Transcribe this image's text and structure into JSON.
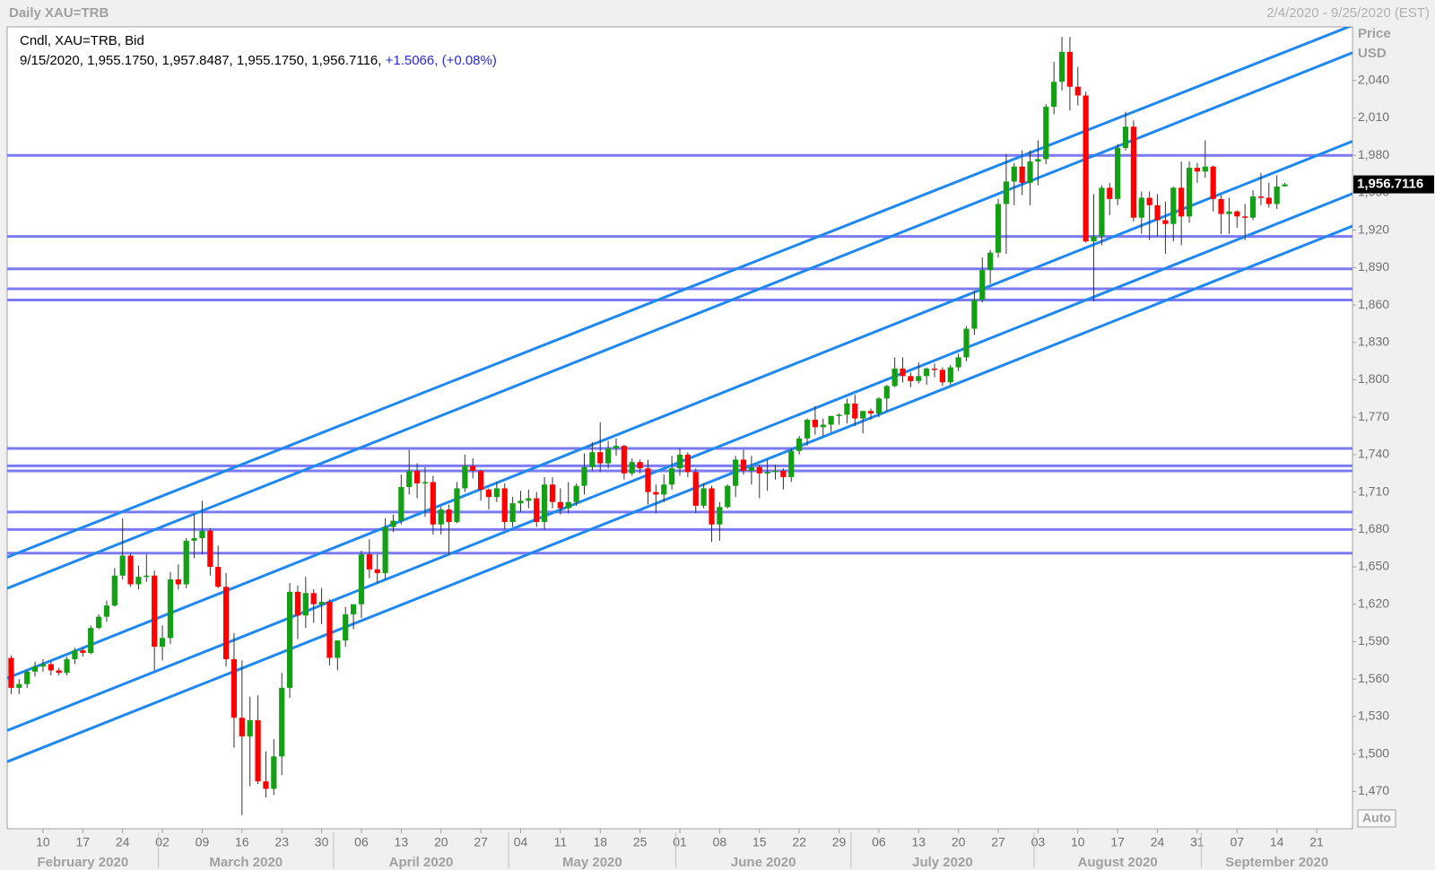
{
  "chart_data": {
    "type": "candlestick",
    "title": "Daily XAU=TRB",
    "date_range": "2/4/2020 - 9/25/2020 (EST)",
    "legend_title": "Cndl, XAU=TRB, Bid",
    "legend_values": "9/15/2020, 1,955.1750, 1,957.8487, 1,955.1750, 1,956.7116,",
    "legend_change": "+1.5066,",
    "legend_change_pct": "(+0.08%)",
    "y_axis_title": "Price",
    "y_axis_unit": "USD",
    "auto_button": "Auto",
    "up_color": "#14a014",
    "down_color": "#ff0000",
    "level_color": "#7b7bf5",
    "channel_color": "#1e88f0",
    "xlim": [
      "2020-02-04",
      "2020-09-25"
    ],
    "ylim": [
      1440,
      2083
    ],
    "yticks": [
      {
        "value": 1470,
        "label": "1,470"
      },
      {
        "value": 1500,
        "label": "1,500"
      },
      {
        "value": 1530,
        "label": "1,530"
      },
      {
        "value": 1560,
        "label": "1,560"
      },
      {
        "value": 1590,
        "label": "1,590"
      },
      {
        "value": 1620,
        "label": "1,620"
      },
      {
        "value": 1650,
        "label": "1,650"
      },
      {
        "value": 1680,
        "label": "1,680"
      },
      {
        "value": 1710,
        "label": "1,710"
      },
      {
        "value": 1740,
        "label": "1,740"
      },
      {
        "value": 1770,
        "label": "1,770"
      },
      {
        "value": 1800,
        "label": "1,800"
      },
      {
        "value": 1830,
        "label": "1,830"
      },
      {
        "value": 1860,
        "label": "1,860"
      },
      {
        "value": 1890,
        "label": "1,890"
      },
      {
        "value": 1920,
        "label": "1,920"
      },
      {
        "value": 1950,
        "label": "1,950"
      },
      {
        "value": 1980,
        "label": "1,980"
      },
      {
        "value": 2010,
        "label": "2,010"
      },
      {
        "value": 2040,
        "label": "2,040"
      }
    ],
    "xticks": [
      {
        "value": "2020-02-10",
        "label": "10"
      },
      {
        "value": "2020-02-17",
        "label": "17"
      },
      {
        "value": "2020-02-24",
        "label": "24"
      },
      {
        "value": "2020-03-02",
        "label": "02"
      },
      {
        "value": "2020-03-09",
        "label": "09"
      },
      {
        "value": "2020-03-16",
        "label": "16"
      },
      {
        "value": "2020-03-23",
        "label": "23"
      },
      {
        "value": "2020-03-30",
        "label": "30"
      },
      {
        "value": "2020-04-06",
        "label": "06"
      },
      {
        "value": "2020-04-13",
        "label": "13"
      },
      {
        "value": "2020-04-20",
        "label": "20"
      },
      {
        "value": "2020-04-27",
        "label": "27"
      },
      {
        "value": "2020-05-04",
        "label": "04"
      },
      {
        "value": "2020-05-11",
        "label": "11"
      },
      {
        "value": "2020-05-18",
        "label": "18"
      },
      {
        "value": "2020-05-25",
        "label": "25"
      },
      {
        "value": "2020-06-01",
        "label": "01"
      },
      {
        "value": "2020-06-08",
        "label": "08"
      },
      {
        "value": "2020-06-15",
        "label": "15"
      },
      {
        "value": "2020-06-22",
        "label": "22"
      },
      {
        "value": "2020-06-29",
        "label": "29"
      },
      {
        "value": "2020-07-06",
        "label": "06"
      },
      {
        "value": "2020-07-13",
        "label": "13"
      },
      {
        "value": "2020-07-20",
        "label": "20"
      },
      {
        "value": "2020-07-27",
        "label": "27"
      },
      {
        "value": "2020-08-03",
        "label": "03"
      },
      {
        "value": "2020-08-10",
        "label": "10"
      },
      {
        "value": "2020-08-17",
        "label": "17"
      },
      {
        "value": "2020-08-24",
        "label": "24"
      },
      {
        "value": "2020-08-31",
        "label": "31"
      },
      {
        "value": "2020-09-07",
        "label": "07"
      },
      {
        "value": "2020-09-14",
        "label": "14"
      },
      {
        "value": "2020-09-21",
        "label": "21"
      }
    ],
    "months": [
      {
        "value": "2020-02",
        "label": "February 2020"
      },
      {
        "value": "2020-03",
        "label": "March 2020"
      },
      {
        "value": "2020-04",
        "label": "April 2020"
      },
      {
        "value": "2020-05",
        "label": "May 2020"
      },
      {
        "value": "2020-06",
        "label": "June 2020"
      },
      {
        "value": "2020-07",
        "label": "July 2020"
      },
      {
        "value": "2020-08",
        "label": "August 2020"
      },
      {
        "value": "2020-09",
        "label": "September 2020"
      }
    ],
    "last_price": {
      "value": 1956.7116,
      "label": "1,956.7116"
    },
    "levels": [
      1980,
      1915,
      1889,
      1873,
      1864,
      1745,
      1731,
      1727,
      1694,
      1680,
      1661
    ],
    "channel_lines": [
      {
        "start": "2020-02-04",
        "end": "2020-09-25",
        "start_price": 1659,
        "end_price": 2083
      },
      {
        "start": "2020-02-04",
        "end": "2020-09-25",
        "start_price": 1634,
        "end_price": 2061
      },
      {
        "start": "2020-02-04",
        "end": "2020-09-25",
        "start_price": 1562,
        "end_price": 1990
      },
      {
        "start": "2020-02-04",
        "end": "2020-09-25",
        "start_price": 1520,
        "end_price": 1948
      },
      {
        "start": "2020-02-04",
        "end": "2020-09-25",
        "start_price": 1495,
        "end_price": 1922
      }
    ],
    "x": [
      "2020-02-04",
      "2020-02-05",
      "2020-02-06",
      "2020-02-07",
      "2020-02-10",
      "2020-02-11",
      "2020-02-12",
      "2020-02-13",
      "2020-02-14",
      "2020-02-17",
      "2020-02-18",
      "2020-02-19",
      "2020-02-20",
      "2020-02-21",
      "2020-02-24",
      "2020-02-25",
      "2020-02-26",
      "2020-02-27",
      "2020-02-28",
      "2020-03-02",
      "2020-03-03",
      "2020-03-04",
      "2020-03-05",
      "2020-03-06",
      "2020-03-09",
      "2020-03-10",
      "2020-03-11",
      "2020-03-12",
      "2020-03-13",
      "2020-03-16",
      "2020-03-17",
      "2020-03-18",
      "2020-03-19",
      "2020-03-20",
      "2020-03-23",
      "2020-03-24",
      "2020-03-25",
      "2020-03-26",
      "2020-03-27",
      "2020-03-30",
      "2020-03-31",
      "2020-04-01",
      "2020-04-02",
      "2020-04-03",
      "2020-04-06",
      "2020-04-07",
      "2020-04-08",
      "2020-04-09",
      "2020-04-10",
      "2020-04-13",
      "2020-04-14",
      "2020-04-15",
      "2020-04-16",
      "2020-04-17",
      "2020-04-20",
      "2020-04-21",
      "2020-04-22",
      "2020-04-23",
      "2020-04-24",
      "2020-04-27",
      "2020-04-28",
      "2020-04-29",
      "2020-04-30",
      "2020-05-01",
      "2020-05-04",
      "2020-05-05",
      "2020-05-06",
      "2020-05-07",
      "2020-05-08",
      "2020-05-11",
      "2020-05-12",
      "2020-05-13",
      "2020-05-14",
      "2020-05-15",
      "2020-05-18",
      "2020-05-19",
      "2020-05-20",
      "2020-05-21",
      "2020-05-22",
      "2020-05-25",
      "2020-05-26",
      "2020-05-27",
      "2020-05-28",
      "2020-05-29",
      "2020-06-01",
      "2020-06-02",
      "2020-06-03",
      "2020-06-04",
      "2020-06-05",
      "2020-06-08",
      "2020-06-09",
      "2020-06-10",
      "2020-06-11",
      "2020-06-12",
      "2020-06-15",
      "2020-06-16",
      "2020-06-17",
      "2020-06-18",
      "2020-06-19",
      "2020-06-22",
      "2020-06-23",
      "2020-06-24",
      "2020-06-25",
      "2020-06-26",
      "2020-06-29",
      "2020-06-30",
      "2020-07-01",
      "2020-07-02",
      "2020-07-03",
      "2020-07-06",
      "2020-07-07",
      "2020-07-08",
      "2020-07-09",
      "2020-07-10",
      "2020-07-13",
      "2020-07-14",
      "2020-07-15",
      "2020-07-16",
      "2020-07-17",
      "2020-07-20",
      "2020-07-21",
      "2020-07-22",
      "2020-07-23",
      "2020-07-24",
      "2020-07-27",
      "2020-07-28",
      "2020-07-29",
      "2020-07-30",
      "2020-07-31",
      "2020-08-03",
      "2020-08-04",
      "2020-08-05",
      "2020-08-06",
      "2020-08-07",
      "2020-08-10",
      "2020-08-11",
      "2020-08-12",
      "2020-08-13",
      "2020-08-14",
      "2020-08-17",
      "2020-08-18",
      "2020-08-19",
      "2020-08-20",
      "2020-08-21",
      "2020-08-24",
      "2020-08-25",
      "2020-08-26",
      "2020-08-27",
      "2020-08-28",
      "2020-08-31",
      "2020-09-01",
      "2020-09-02",
      "2020-09-03",
      "2020-09-04",
      "2020-09-07",
      "2020-09-08",
      "2020-09-09",
      "2020-09-10",
      "2020-09-11",
      "2020-09-14",
      "2020-09-15"
    ],
    "open": [
      1577,
      1553,
      1556,
      1566,
      1570,
      1572,
      1567,
      1565,
      1576,
      1583,
      1581,
      1601,
      1610,
      1619,
      1643,
      1659,
      1636,
      1642,
      1643,
      1586,
      1593,
      1640,
      1636,
      1671,
      1673,
      1679,
      1650,
      1634,
      1576,
      1529,
      1514,
      1527,
      1478,
      1472,
      1498,
      1553,
      1630,
      1611,
      1629,
      1620,
      1622,
      1577,
      1591,
      1612,
      1620,
      1660,
      1648,
      1645,
      1682,
      1687,
      1714,
      1727,
      1717,
      1718,
      1684,
      1696,
      1686,
      1713,
      1731,
      1727,
      1712,
      1706,
      1713,
      1686,
      1701,
      1703,
      1705,
      1686,
      1716,
      1702,
      1697,
      1702,
      1715,
      1730,
      1742,
      1733,
      1745,
      1747,
      1725,
      1734,
      1729,
      1710,
      1708,
      1716,
      1729,
      1740,
      1726,
      1699,
      1713,
      1684,
      1698,
      1715,
      1736,
      1727,
      1730,
      1725,
      1726,
      1727,
      1722,
      1743,
      1753,
      1768,
      1762,
      1764,
      1771,
      1772,
      1781,
      1769,
      1775,
      1773,
      1785,
      1795,
      1809,
      1803,
      1799,
      1803,
      1809,
      1808,
      1798,
      1810,
      1818,
      1841,
      1864,
      1888,
      1902,
      1941,
      1959,
      1971,
      1958,
      1975,
      1977,
      2019,
      2039,
      2063,
      2035,
      2028,
      1911,
      1915,
      1954,
      1945,
      1986,
      2003,
      1930,
      1946,
      1940,
      1928,
      1925,
      1954,
      1931,
      1970,
      1967,
      1971,
      1945,
      1933,
      1935,
      1931,
      1930,
      1947,
      1946,
      1941,
      1955.175
    ],
    "high": [
      1579,
      1560,
      1567,
      1574,
      1576,
      1574,
      1569,
      1578,
      1585,
      1585,
      1603,
      1612,
      1623,
      1649,
      1689,
      1661,
      1651,
      1660,
      1647,
      1603,
      1646,
      1652,
      1673,
      1692,
      1703,
      1681,
      1667,
      1645,
      1597,
      1575,
      1546,
      1547,
      1502,
      1512,
      1565,
      1637,
      1635,
      1642,
      1632,
      1633,
      1624,
      1591,
      1618,
      1620,
      1663,
      1672,
      1660,
      1689,
      1692,
      1724,
      1744,
      1733,
      1730,
      1723,
      1698,
      1700,
      1718,
      1740,
      1737,
      1728,
      1713,
      1718,
      1717,
      1706,
      1711,
      1712,
      1710,
      1722,
      1722,
      1713,
      1718,
      1717,
      1741,
      1750,
      1766,
      1751,
      1753,
      1748,
      1737,
      1736,
      1736,
      1716,
      1724,
      1739,
      1745,
      1742,
      1729,
      1717,
      1715,
      1702,
      1716,
      1739,
      1744,
      1739,
      1732,
      1736,
      1732,
      1729,
      1745,
      1755,
      1769,
      1779,
      1769,
      1771,
      1773,
      1785,
      1788,
      1775,
      1777,
      1786,
      1796,
      1818,
      1818,
      1806,
      1814,
      1810,
      1813,
      1810,
      1812,
      1821,
      1843,
      1871,
      1898,
      1904,
      1945,
      1981,
      1974,
      1984,
      1984,
      1992,
      2021,
      2055,
      2075,
      2075,
      2051,
      2031,
      1949,
      1956,
      1958,
      1989,
      2015,
      2008,
      1951,
      1951,
      1949,
      1943,
      1955,
      1975,
      1975,
      1974,
      1992,
      1972,
      1948,
      1946,
      1936,
      1941,
      1952,
      1966,
      1958,
      1964,
      1957.8487
    ],
    "low": [
      1548,
      1548,
      1553,
      1562,
      1566,
      1563,
      1563,
      1563,
      1572,
      1578,
      1580,
      1600,
      1606,
      1618,
      1640,
      1634,
      1632,
      1638,
      1567,
      1575,
      1588,
      1632,
      1633,
      1657,
      1660,
      1643,
      1633,
      1570,
      1505,
      1451,
      1474,
      1476,
      1465,
      1467,
      1483,
      1545,
      1592,
      1601,
      1605,
      1604,
      1571,
      1567,
      1586,
      1600,
      1609,
      1641,
      1637,
      1640,
      1678,
      1684,
      1708,
      1705,
      1690,
      1676,
      1676,
      1660,
      1685,
      1710,
      1721,
      1703,
      1696,
      1702,
      1680,
      1682,
      1694,
      1697,
      1682,
      1680,
      1697,
      1692,
      1693,
      1699,
      1708,
      1727,
      1726,
      1729,
      1739,
      1720,
      1723,
      1725,
      1700,
      1693,
      1702,
      1712,
      1723,
      1722,
      1693,
      1697,
      1670,
      1671,
      1697,
      1706,
      1724,
      1716,
      1705,
      1711,
      1720,
      1712,
      1718,
      1740,
      1747,
      1756,
      1755,
      1758,
      1764,
      1765,
      1763,
      1757,
      1768,
      1770,
      1775,
      1794,
      1798,
      1794,
      1797,
      1796,
      1802,
      1795,
      1796,
      1807,
      1815,
      1836,
      1862,
      1877,
      1898,
      1901,
      1940,
      1948,
      1940,
      1956,
      1973,
      2013,
      2032,
      2016,
      2020,
      1910,
      1863,
      1908,
      1932,
      1940,
      1984,
      1927,
      1917,
      1912,
      1915,
      1901,
      1911,
      1908,
      1926,
      1958,
      1962,
      1935,
      1917,
      1917,
      1922,
      1912,
      1928,
      1940,
      1938,
      1937,
      1955.175
    ],
    "close": [
      1553,
      1556,
      1566,
      1570,
      1572,
      1567,
      1565,
      1576,
      1583,
      1581,
      1601,
      1610,
      1619,
      1643,
      1659,
      1636,
      1642,
      1643,
      1586,
      1593,
      1640,
      1636,
      1671,
      1673,
      1679,
      1650,
      1634,
      1576,
      1529,
      1514,
      1527,
      1478,
      1472,
      1498,
      1553,
      1630,
      1611,
      1629,
      1620,
      1622,
      1577,
      1591,
      1612,
      1620,
      1660,
      1648,
      1645,
      1682,
      1687,
      1714,
      1727,
      1717,
      1718,
      1684,
      1696,
      1686,
      1713,
      1731,
      1727,
      1712,
      1706,
      1713,
      1686,
      1701,
      1703,
      1705,
      1686,
      1716,
      1702,
      1697,
      1702,
      1715,
      1730,
      1742,
      1733,
      1745,
      1747,
      1725,
      1734,
      1729,
      1710,
      1708,
      1716,
      1729,
      1740,
      1726,
      1699,
      1713,
      1684,
      1698,
      1715,
      1736,
      1727,
      1730,
      1725,
      1726,
      1727,
      1722,
      1743,
      1753,
      1768,
      1762,
      1764,
      1771,
      1772,
      1781,
      1769,
      1775,
      1773,
      1785,
      1795,
      1809,
      1803,
      1799,
      1803,
      1809,
      1808,
      1798,
      1810,
      1818,
      1841,
      1864,
      1888,
      1902,
      1941,
      1959,
      1971,
      1958,
      1975,
      1977,
      2019,
      2039,
      2063,
      2035,
      2028,
      1911,
      1915,
      1954,
      1945,
      1986,
      2003,
      1930,
      1946,
      1940,
      1928,
      1925,
      1954,
      1931,
      1970,
      1967,
      1971,
      1945,
      1933,
      1935,
      1931,
      1930,
      1947,
      1946,
      1941,
      1955,
      1956.7116
    ]
  }
}
